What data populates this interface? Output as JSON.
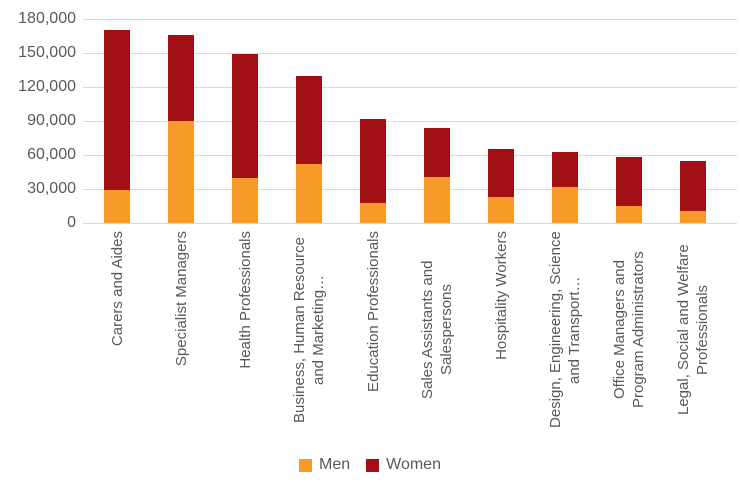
{
  "chart_data": {
    "type": "bar",
    "stacked": true,
    "orientation": "vertical",
    "title": "",
    "xlabel": "",
    "ylabel": "",
    "grid": true,
    "legend_position": "bottom",
    "ylim": [
      0,
      180000
    ],
    "ytick_interval": 30000,
    "yticks": [
      {
        "value": 180000,
        "label": "180,000"
      },
      {
        "value": 150000,
        "label": "150,000"
      },
      {
        "value": 120000,
        "label": "120,000"
      },
      {
        "value": 90000,
        "label": "90,000"
      },
      {
        "value": 60000,
        "label": "60,000"
      },
      {
        "value": 30000,
        "label": "30,000"
      },
      {
        "value": 0,
        "label": "0"
      }
    ],
    "categories": [
      "Carers and Aides",
      "Specialist Managers",
      "Health Professionals",
      "Business, Human Resource and Marketing…",
      "Education Professionals",
      "Sales Assistants and Salespersons",
      "Hospitality Workers",
      "Design, Engineering, Science and Transport…",
      "Office Managers and Program Administrators",
      "Legal, Social and Welfare Professionals"
    ],
    "series": [
      {
        "name": "Men",
        "color": "#F79B28",
        "values": [
          29000,
          90000,
          40000,
          52000,
          18000,
          41000,
          23000,
          32000,
          15000,
          11000
        ]
      },
      {
        "name": "Women",
        "color": "#A21016",
        "values": [
          141000,
          76000,
          109000,
          78000,
          74000,
          43000,
          42000,
          31000,
          43000,
          44000
        ]
      }
    ]
  },
  "legend": {
    "men_label": "Men",
    "women_label": "Women"
  },
  "colors": {
    "gridline": "#D9D9D9",
    "axis_text": "#595959",
    "background": "#FFFFFF"
  }
}
